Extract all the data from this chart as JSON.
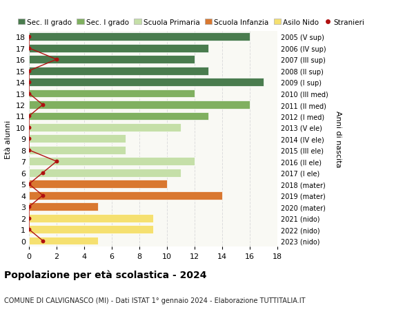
{
  "ages": [
    18,
    17,
    16,
    15,
    14,
    13,
    12,
    11,
    10,
    9,
    8,
    7,
    6,
    5,
    4,
    3,
    2,
    1,
    0
  ],
  "years": [
    "2005 (V sup)",
    "2006 (IV sup)",
    "2007 (III sup)",
    "2008 (II sup)",
    "2009 (I sup)",
    "2010 (III med)",
    "2011 (II med)",
    "2012 (I med)",
    "2013 (V ele)",
    "2014 (IV ele)",
    "2015 (III ele)",
    "2016 (II ele)",
    "2017 (I ele)",
    "2018 (mater)",
    "2019 (mater)",
    "2020 (mater)",
    "2021 (nido)",
    "2022 (nido)",
    "2023 (nido)"
  ],
  "bar_values": [
    16,
    13,
    12,
    13,
    17,
    12,
    16,
    13,
    11,
    7,
    7,
    12,
    11,
    10,
    14,
    5,
    9,
    9,
    5
  ],
  "stranieri": [
    0,
    0,
    2,
    0,
    0,
    0,
    1,
    0,
    0,
    0,
    0,
    2,
    1,
    0,
    1,
    0,
    0,
    0,
    1
  ],
  "bar_colors_map": {
    "sec2": "#4a7c4e",
    "sec1": "#80b060",
    "primaria": "#c5dfa8",
    "infanzia": "#d97830",
    "nido": "#f5e070"
  },
  "bar_color_per_age": [
    "sec2",
    "sec2",
    "sec2",
    "sec2",
    "sec2",
    "sec1",
    "sec1",
    "sec1",
    "primaria",
    "primaria",
    "primaria",
    "primaria",
    "primaria",
    "infanzia",
    "infanzia",
    "infanzia",
    "nido",
    "nido",
    "nido"
  ],
  "stranieri_color": "#b01010",
  "stranieri_line_color": "#b01010",
  "legend_labels": [
    "Sec. II grado",
    "Sec. I grado",
    "Scuola Primaria",
    "Scuola Infanzia",
    "Asilo Nido",
    "Stranieri"
  ],
  "legend_colors": [
    "#4a7c4e",
    "#80b060",
    "#c5dfa8",
    "#d97830",
    "#f5e070",
    "#b01010"
  ],
  "title": "Popolazione per età scolastica - 2024",
  "subtitle": "COMUNE DI CALVIGNASCO (MI) - Dati ISTAT 1° gennaio 2024 - Elaborazione TUTTITALIA.IT",
  "ylabel": "Età alunni",
  "right_ylabel": "Anni di nascita",
  "xlabel_ticks": [
    0,
    2,
    4,
    6,
    8,
    10,
    12,
    14,
    16,
    18
  ],
  "xlim": [
    0,
    18
  ],
  "grid_color": "#dddddd",
  "bg_color": "#f9f9f4",
  "bar_edgecolor": "#ffffff"
}
